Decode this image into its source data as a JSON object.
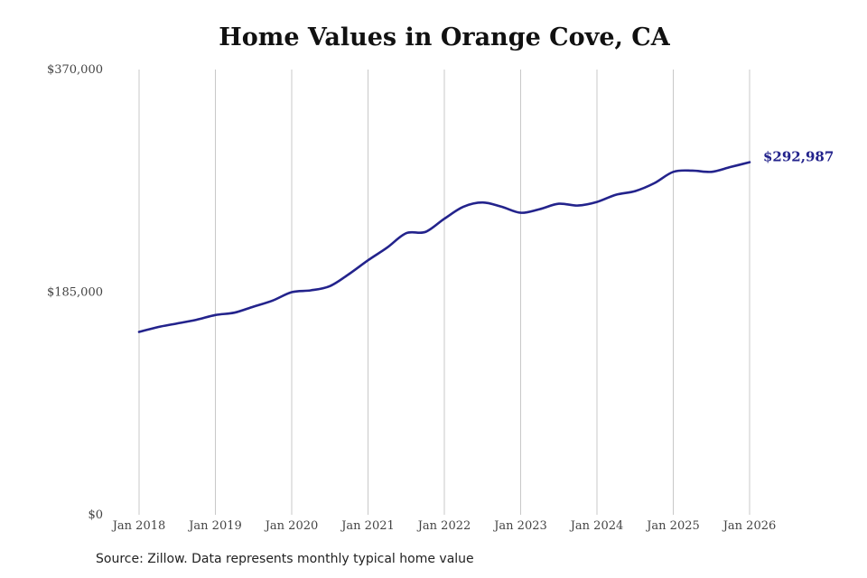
{
  "chart_data": {
    "type": "line",
    "title": "Home Values in Orange Cove, CA",
    "source": "Source: Zillow. Data represents monthly typical home value",
    "xlabel": "",
    "ylabel": "",
    "ylim": [
      0,
      370000
    ],
    "y_ticks": [
      0,
      185000,
      370000
    ],
    "y_tick_labels": [
      "$0",
      "$185,000",
      "$370,000"
    ],
    "x_ticks": [
      "2018-01",
      "2019-01",
      "2020-01",
      "2021-01",
      "2022-01",
      "2023-01",
      "2024-01",
      "2025-01",
      "2026-01"
    ],
    "x_tick_labels": [
      "Jan 2018",
      "Jan 2019",
      "Jan 2020",
      "Jan 2021",
      "Jan 2022",
      "Jan 2023",
      "Jan 2024",
      "Jan 2025",
      "Jan 2026"
    ],
    "grid": "vertical",
    "line_color": "#23238c",
    "end_label": "$292,987",
    "series": [
      {
        "x": [
          "2018-01",
          "2018-04",
          "2018-07",
          "2018-10",
          "2019-01",
          "2019-04",
          "2019-07",
          "2019-10",
          "2020-01",
          "2020-04",
          "2020-07",
          "2020-10",
          "2021-01",
          "2021-04",
          "2021-07",
          "2021-10",
          "2022-01",
          "2022-04",
          "2022-07",
          "2022-10",
          "2023-01",
          "2023-04",
          "2023-07",
          "2023-10",
          "2024-01",
          "2024-04",
          "2024-07",
          "2024-10",
          "2025-01",
          "2025-04",
          "2025-07",
          "2025-10",
          "2026-01"
        ],
        "values": [
          152000,
          156000,
          159000,
          162000,
          166000,
          168000,
          173000,
          178000,
          185000,
          186500,
          190000,
          200000,
          211500,
          222000,
          234000,
          235000,
          246000,
          256000,
          259500,
          256000,
          251000,
          254000,
          258500,
          257000,
          260000,
          266000,
          269000,
          275500,
          285000,
          286000,
          285000,
          289000,
          292987
        ]
      }
    ]
  }
}
